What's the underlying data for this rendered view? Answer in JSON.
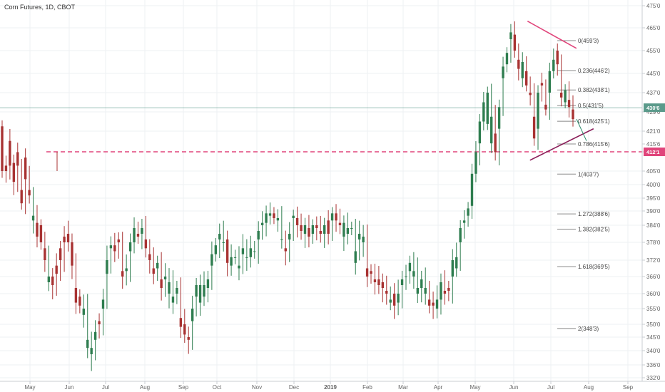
{
  "chart_data": {
    "type": "candlestick",
    "title": "Corn Futures, 1D, CBOT",
    "xlabel": "",
    "ylabel": "",
    "price_unit_note": "quarter-cent prices shown as whole'eighths",
    "y_ticks": [
      "475'0",
      "465'0",
      "455'0",
      "445'0",
      "437'0",
      "429'0",
      "421'0",
      "415'6",
      "412'1",
      "405'0",
      "400'0",
      "395'0",
      "390'0",
      "384'0",
      "378'0",
      "372'0",
      "366'0",
      "360'0",
      "355'0",
      "350'0",
      "345'0",
      "340'0",
      "336'0",
      "332'0"
    ],
    "x_ticks": [
      "May",
      "Jun",
      "Jul",
      "Aug",
      "Sep",
      "Oct",
      "Nov",
      "Dec",
      "2019",
      "Feb",
      "Mar",
      "Apr",
      "May",
      "Jun",
      "Jul",
      "Aug",
      "Sep"
    ],
    "current_price": {
      "label": "430'6",
      "value": 430.75,
      "color": "#5b9a8b"
    },
    "level_tag": {
      "label": "412'1",
      "value": 412.125,
      "color": "#e0457b"
    },
    "horizontal_level": {
      "value": 412.125,
      "style": "dashed",
      "color": "#e0457b"
    },
    "fibonacci": [
      {
        "ratio": "0",
        "label": "0(459'3)",
        "value": 459.375
      },
      {
        "ratio": "0.236",
        "label": "0.236(446'2)",
        "value": 446.25
      },
      {
        "ratio": "0.382",
        "label": "0.382(438'1)",
        "value": 438.125
      },
      {
        "ratio": "0.5",
        "label": "0.5(431'5)",
        "value": 431.625
      },
      {
        "ratio": "0.618",
        "label": "0.618(425'1)",
        "value": 425.125
      },
      {
        "ratio": "0.786",
        "label": "0.786(415'6)",
        "value": 415.75
      },
      {
        "ratio": "1",
        "label": "1(403'7)",
        "value": 403.875
      },
      {
        "ratio": "1.272",
        "label": "1.272(388'6)",
        "value": 388.75
      },
      {
        "ratio": "1.382",
        "label": "1.382(382'5)",
        "value": 382.625
      },
      {
        "ratio": "1.618",
        "label": "1.618(369'5)",
        "value": 369.625
      },
      {
        "ratio": "2",
        "label": "2(348'3)",
        "value": 348.375
      }
    ],
    "trend_lines": [
      {
        "name": "upper",
        "color": "#e0457b",
        "from": [
          "2019-06-12",
          468
        ],
        "to": [
          "2019-07-22",
          456
        ]
      },
      {
        "name": "lower",
        "color": "#8b1f5a",
        "from": [
          "2019-06-14",
          409
        ],
        "to": [
          "2019-08-05",
          422
        ]
      }
    ],
    "colors": {
      "up": "#2e7d4f",
      "down": "#a83232",
      "grid": "#eef0f3"
    },
    "candles": [
      [
        423,
        405
      ],
      [
        407,
        405
      ],
      [
        417,
        407
      ],
      [
        408,
        401
      ],
      [
        412,
        407
      ],
      [
        398,
        393
      ],
      [
        410,
        402
      ],
      [
        398,
        396
      ],
      [
        386,
        388
      ],
      [
        385,
        380
      ],
      [
        384,
        378
      ],
      [
        376,
        372
      ],
      [
        364,
        366
      ],
      [
        366,
        363
      ],
      [
        370,
        367
      ],
      [
        376,
        372
      ],
      [
        380,
        378
      ],
      [
        381,
        378
      ],
      [
        378,
        370
      ],
      [
        362,
        357
      ],
      [
        359,
        356
      ],
      [
        353,
        355
      ],
      [
        341,
        344
      ],
      [
        339,
        341
      ],
      [
        344,
        347
      ],
      [
        351,
        350
      ],
      [
        355,
        358
      ],
      [
        367,
        372
      ],
      [
        376,
        377
      ],
      [
        377,
        375
      ],
      [
        379,
        378
      ],
      [
        368,
        366
      ],
      [
        368,
        369
      ],
      [
        375,
        378
      ],
      [
        378,
        383
      ],
      [
        381,
        380
      ],
      [
        381,
        383
      ],
      [
        379,
        376
      ],
      [
        374,
        372
      ],
      [
        369,
        367
      ],
      [
        369,
        371
      ],
      [
        365,
        362
      ],
      [
        365,
        366
      ],
      [
        360,
        364
      ],
      [
        357,
        359
      ],
      [
        360,
        362
      ],
      [
        352,
        349
      ],
      [
        350,
        346
      ],
      [
        345,
        344
      ],
      [
        351,
        355
      ],
      [
        359,
        363
      ],
      [
        357,
        363
      ],
      [
        359,
        363
      ],
      [
        362,
        365
      ],
      [
        370,
        374
      ],
      [
        374,
        377
      ],
      [
        379,
        381
      ],
      [
        378,
        378
      ],
      [
        379,
        371
      ],
      [
        370,
        373
      ],
      [
        373,
        373
      ],
      [
        369,
        370
      ],
      [
        374,
        376
      ],
      [
        373,
        373
      ],
      [
        373,
        376
      ],
      [
        375,
        375
      ],
      [
        379,
        382
      ],
      [
        384,
        385
      ],
      [
        385,
        389
      ],
      [
        388,
        389
      ],
      [
        389,
        387
      ],
      [
        386,
        387
      ],
      [
        379,
        379
      ],
      [
        376,
        375
      ],
      [
        379,
        381
      ],
      [
        387,
        388
      ],
      [
        387,
        384
      ],
      [
        384,
        382
      ],
      [
        381,
        384
      ],
      [
        383,
        380
      ],
      [
        381,
        384
      ],
      [
        384,
        383
      ],
      [
        382,
        381
      ],
      [
        381,
        384
      ],
      [
        386,
        381
      ],
      [
        386,
        389
      ],
      [
        389,
        386
      ],
      [
        385,
        384
      ],
      [
        380,
        385
      ],
      [
        381,
        383
      ],
      [
        383,
        383
      ],
      [
        371,
        375
      ],
      [
        379,
        381
      ],
      [
        378,
        380
      ],
      [
        369,
        366
      ],
      [
        368,
        367
      ],
      [
        365,
        364
      ],
      [
        365,
        363
      ],
      [
        364,
        362
      ],
      [
        361,
        360
      ],
      [
        357,
        358
      ],
      [
        360,
        356
      ],
      [
        357,
        360
      ],
      [
        363,
        365
      ],
      [
        366,
        366
      ],
      [
        368,
        371
      ],
      [
        366,
        368
      ],
      [
        360,
        362
      ],
      [
        362,
        365
      ],
      [
        360,
        362
      ],
      [
        358,
        356
      ],
      [
        357,
        356
      ],
      [
        355,
        358
      ],
      [
        358,
        364
      ],
      [
        361,
        360
      ],
      [
        362,
        361
      ],
      [
        366,
        372
      ],
      [
        369,
        373
      ],
      [
        378,
        383
      ],
      [
        385,
        386
      ],
      [
        388,
        391
      ],
      [
        392,
        404
      ],
      [
        404,
        412
      ],
      [
        416,
        425
      ],
      [
        425,
        433
      ],
      [
        424,
        437
      ],
      [
        416,
        427
      ],
      [
        420,
        412
      ],
      [
        422,
        431
      ],
      [
        443,
        448
      ],
      [
        449,
        454
      ],
      [
        460,
        463
      ],
      [
        462,
        455
      ],
      [
        451,
        447
      ],
      [
        443,
        450
      ],
      [
        446,
        440
      ],
      [
        437,
        436
      ],
      [
        427,
        418
      ],
      [
        422,
        437
      ],
      [
        441,
        440
      ],
      [
        432,
        430
      ],
      [
        437,
        446
      ],
      [
        446,
        451
      ],
      [
        455,
        449
      ],
      [
        437,
        435
      ],
      [
        433,
        438
      ],
      [
        434,
        431
      ],
      [
        430,
        426
      ]
    ]
  }
}
